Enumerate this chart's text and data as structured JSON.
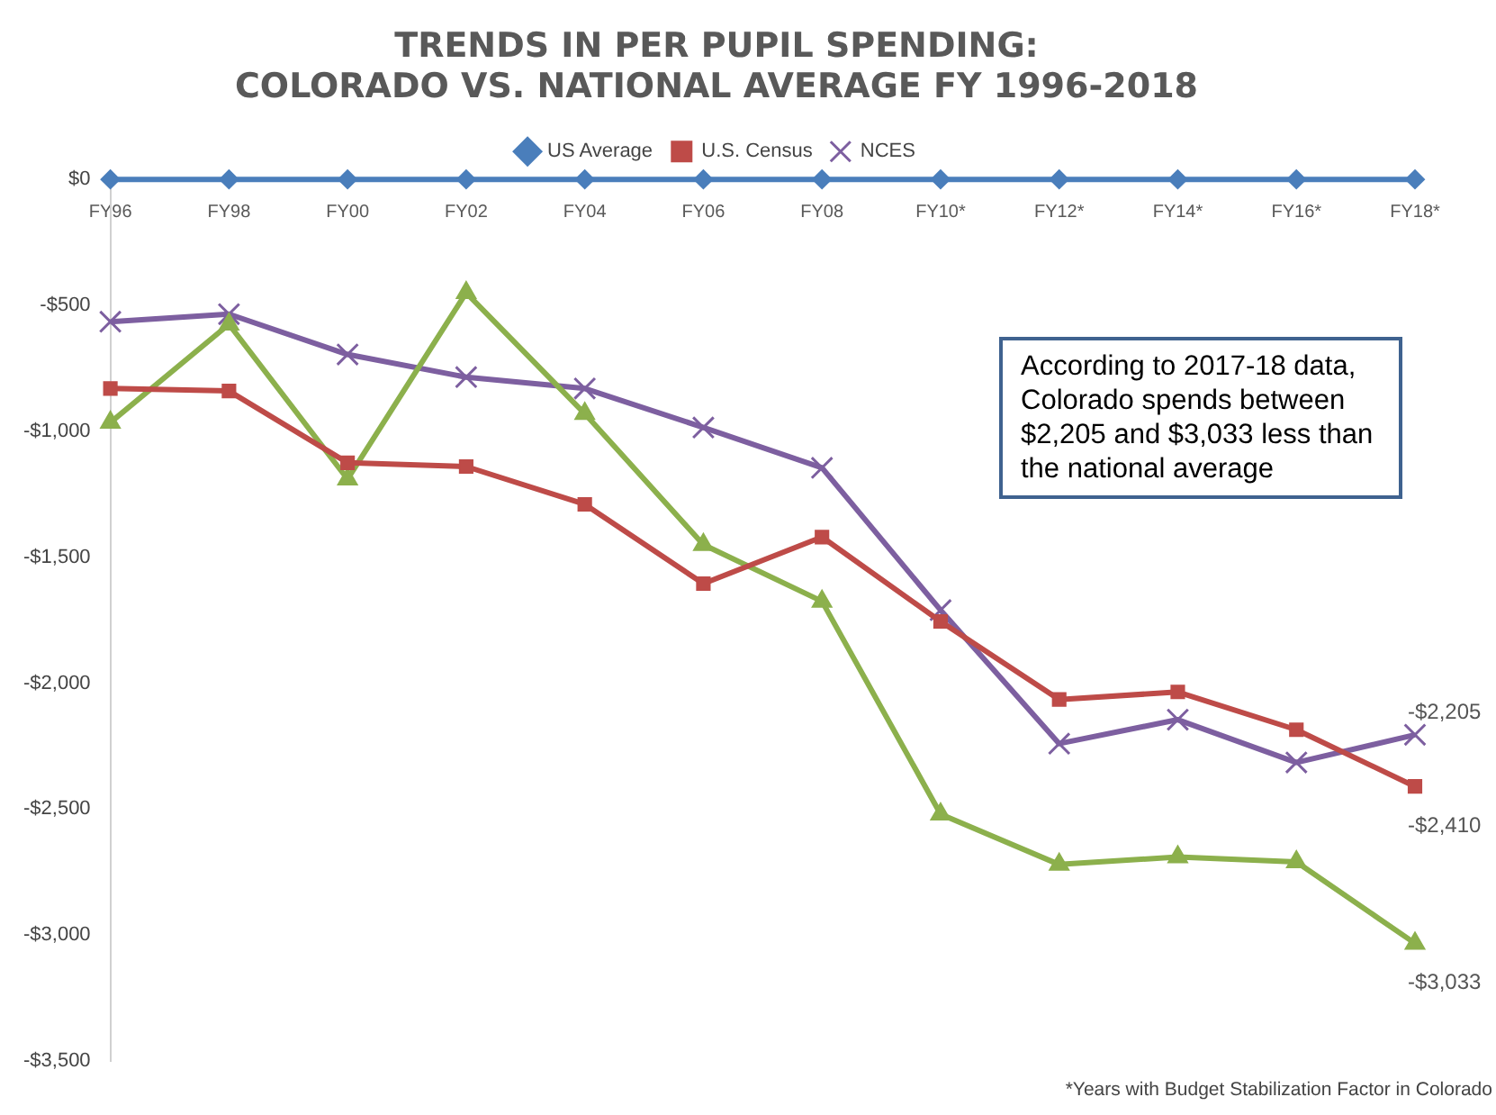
{
  "chart_data": {
    "type": "line",
    "title": "TRENDS IN PER PUPIL SPENDING:\nCOLORADO VS. NATIONAL AVERAGE FY 1996-2018",
    "categories": [
      "FY96",
      "FY98",
      "FY00",
      "FY02",
      "FY04",
      "FY06",
      "FY08",
      "FY10*",
      "FY12*",
      "FY14*",
      "FY16*",
      "FY18*"
    ],
    "series": [
      {
        "name": "US Average",
        "color": "#4a7ebb",
        "marker": "diamond",
        "values": [
          0,
          0,
          0,
          0,
          0,
          0,
          0,
          0,
          0,
          0,
          0,
          0
        ]
      },
      {
        "name": "U.S. Census",
        "color": "#be4b48",
        "marker": "square",
        "values": [
          -830,
          -840,
          -1125,
          -1140,
          -1290,
          -1605,
          -1420,
          -1755,
          -2065,
          -2035,
          -2185,
          -2410
        ],
        "value_labels": [
          null,
          null,
          null,
          null,
          null,
          null,
          null,
          null,
          null,
          null,
          null,
          "-$2,410"
        ]
      },
      {
        "color": "#8cb04c",
        "marker": "triangle",
        "values": [
          -965,
          -575,
          -1190,
          -450,
          -930,
          -1450,
          -1675,
          -2520,
          -2720,
          -2690,
          -2710,
          -3033
        ],
        "value_labels": [
          null,
          null,
          null,
          null,
          null,
          null,
          null,
          null,
          null,
          null,
          null,
          "-$3,033"
        ]
      },
      {
        "name": "NCES",
        "color": "#7d5fa0",
        "marker": "cross",
        "values": [
          -565,
          -535,
          -695,
          -785,
          -830,
          -985,
          -1145,
          -1710,
          -2240,
          -2145,
          -2315,
          -2205
        ],
        "value_labels": [
          null,
          null,
          null,
          null,
          null,
          null,
          null,
          null,
          null,
          null,
          null,
          "-$2,205"
        ]
      }
    ],
    "ylim": [
      -3500,
      0
    ],
    "yticks": [
      {
        "value": 0,
        "label": "$0"
      },
      {
        "value": -500,
        "label": "-$500"
      },
      {
        "value": -1000,
        "label": "-$1,000"
      },
      {
        "value": -1500,
        "label": "-$1,500"
      },
      {
        "value": -2000,
        "label": "-$2,000"
      },
      {
        "value": -2500,
        "label": "-$2,500"
      },
      {
        "value": -3000,
        "label": "-$3,000"
      },
      {
        "value": -3500,
        "label": "-$3,500"
      }
    ],
    "grid": false,
    "legend": "top",
    "line_style": "solid",
    "annotations": [
      "According to 2017-18 data, Colorado spends between $2,205 and $3,033 less than the national average",
      "*Years with Budget Stabilization Factor in Colorado"
    ]
  }
}
